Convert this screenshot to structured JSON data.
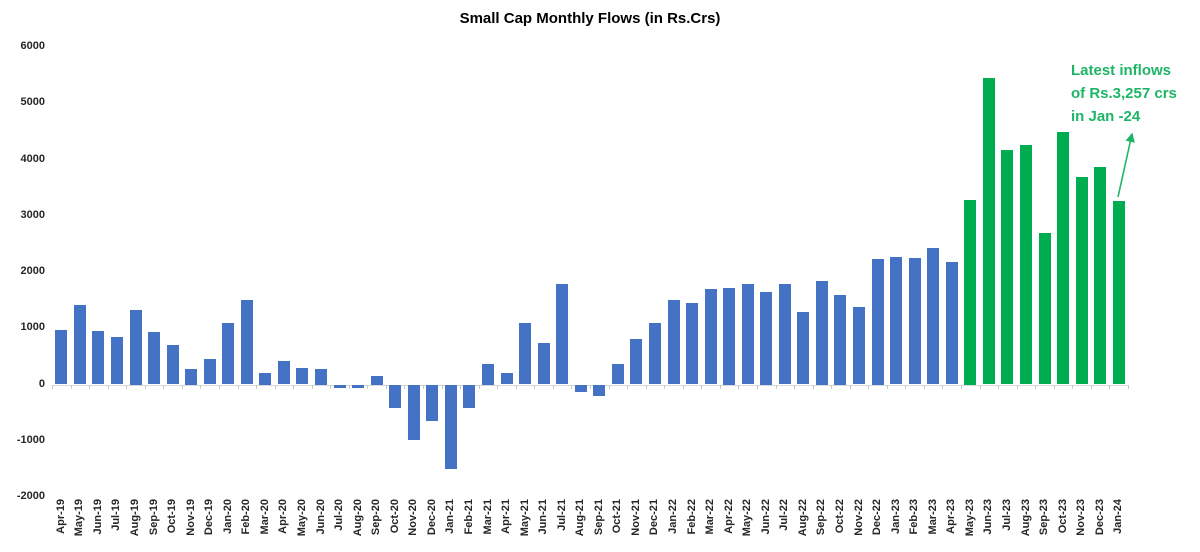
{
  "title": "Small Cap Monthly Flows (in Rs.Crs)",
  "annotation": {
    "line1": "Latest inflows",
    "line2": "of Rs.3,257 crs",
    "line3": "in Jan -24",
    "color": "#1eb567"
  },
  "colors": {
    "bar_blue": "#4472C4",
    "bar_green": "#00AC50",
    "axis_line": "#d9d9d9",
    "tick": "#c9c9c9",
    "axis_text": "#262626",
    "title_text": "#000000"
  },
  "chart_data": {
    "type": "bar",
    "title": "Small Cap Monthly Flows (in Rs.Crs)",
    "categories": [
      "Apr-19",
      "May-19",
      "Jun-19",
      "Jul-19",
      "Aug-19",
      "Sep-19",
      "Oct-19",
      "Nov-19",
      "Dec-19",
      "Jan-20",
      "Feb-20",
      "Mar-20",
      "Apr-20",
      "May-20",
      "Jun-20",
      "Jul-20",
      "Aug-20",
      "Sep-20",
      "Oct-20",
      "Nov-20",
      "Dec-20",
      "Jan-21",
      "Feb-21",
      "Mar-21",
      "Apr-21",
      "May-21",
      "Jun-21",
      "Jul-21",
      "Aug-21",
      "Sep-21",
      "Oct-21",
      "Nov-21",
      "Dec-21",
      "Jan-22",
      "Feb-22",
      "Mar-22",
      "Apr-22",
      "May-22",
      "Jun-22",
      "Jul-22",
      "Aug-22",
      "Sep-22",
      "Oct-22",
      "Nov-22",
      "Dec-22",
      "Jan-23",
      "Feb-23",
      "Mar-23",
      "Apr-23",
      "May-23",
      "Jun-23",
      "Jul-23",
      "Aug-23",
      "Sep-23",
      "Oct-23",
      "Nov-23",
      "Dec-23",
      "Jan-24"
    ],
    "values": [
      970,
      1410,
      950,
      850,
      1320,
      930,
      700,
      280,
      450,
      1100,
      1500,
      200,
      410,
      300,
      280,
      -60,
      -55,
      160,
      -420,
      -990,
      -640,
      -1510,
      -410,
      360,
      210,
      1100,
      740,
      1780,
      -140,
      -200,
      370,
      810,
      1090,
      1510,
      1450,
      1700,
      1720,
      1790,
      1640,
      1790,
      1290,
      1840,
      1600,
      1380,
      2240,
      2260,
      2250,
      2430,
      2180,
      3280,
      5450,
      4170,
      4260,
      2700,
      4490,
      3690,
      3860,
      3257
    ],
    "green_from_index": 49,
    "xlabel": "",
    "ylabel": "",
    "ylim": [
      -2000,
      6000
    ],
    "yticks": [
      6000,
      5000,
      4000,
      3000,
      2000,
      1000,
      0,
      -1000,
      -2000
    ],
    "grid": false,
    "legend": false,
    "annotation_text": "Latest inflows of Rs.3,257 crs in Jan -24",
    "latest_value": 3257
  }
}
